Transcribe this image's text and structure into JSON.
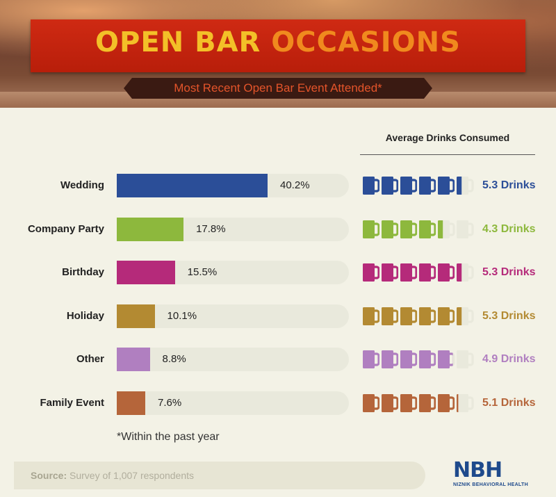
{
  "header": {
    "title_word1": "OPEN BAR",
    "title_word2": "OCCASIONS",
    "subtitle": "Most Recent Open Bar Event Attended*"
  },
  "drinks_header": "Average Drinks Consumed",
  "footnote": "*Within the past year",
  "source": {
    "label": "Source:",
    "text": " Survey of 1,007 respondents"
  },
  "logo": {
    "mark": "NBH",
    "name": "NIZNIK BEHAVIORAL HEALTH"
  },
  "chart_data": {
    "type": "bar",
    "categories": [
      "Wedding",
      "Company Party",
      "Birthday",
      "Holiday",
      "Other",
      "Family Event"
    ],
    "series": [
      {
        "values": [
          40.2,
          17.8,
          15.5,
          10.1,
          8.8,
          7.6
        ],
        "value_labels": [
          "40.2%",
          "17.8%",
          "15.5%",
          "10.1%",
          "8.8%",
          "7.6%"
        ]
      },
      {
        "values": [
          5.3,
          4.3,
          5.3,
          5.3,
          4.9,
          5.1
        ],
        "value_labels": [
          "5.3 Drinks",
          "4.3 Drinks",
          "5.3 Drinks",
          "5.3 Drinks",
          "4.9 Drinks",
          "5.1 Drinks"
        ]
      }
    ],
    "colors": [
      "#2b4e98",
      "#8db83d",
      "#b52a7a",
      "#b38a32",
      "#b07fc0",
      "#b5653a"
    ],
    "bar_xlim": [
      0,
      62
    ],
    "max_drinks": 6
  }
}
